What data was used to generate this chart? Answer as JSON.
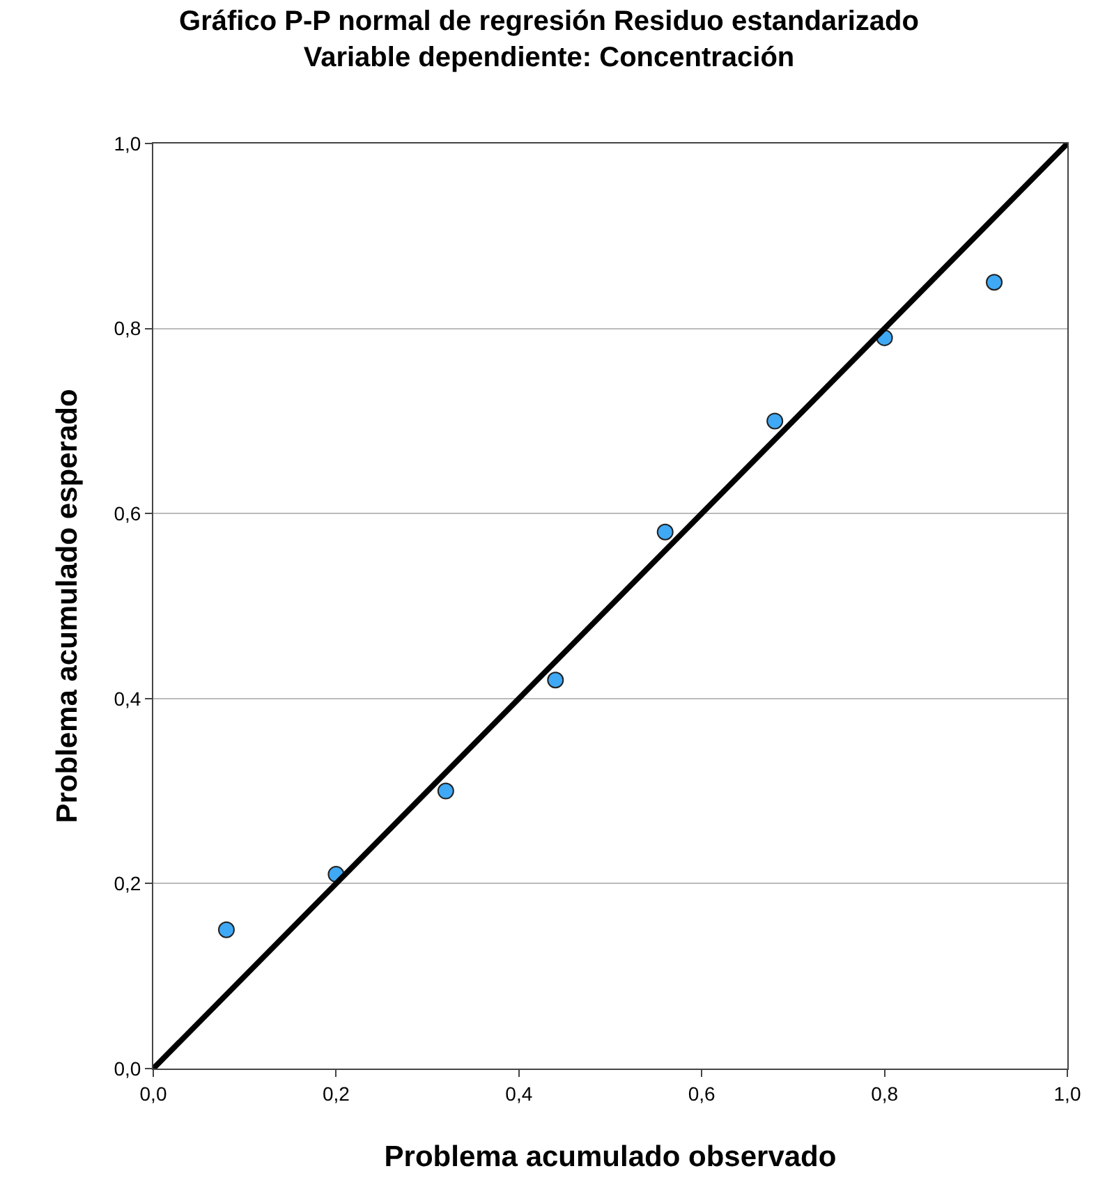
{
  "chart_data": {
    "type": "scatter",
    "title": "Gráfico P-P normal de regresión Residuo estandarizado",
    "subtitle": "Variable dependiente: Concentración",
    "xlabel": "Problema acumulado observado",
    "ylabel": "Problema acumulado esperado",
    "x": [
      0.08,
      0.2,
      0.32,
      0.44,
      0.56,
      0.68,
      0.8,
      0.92
    ],
    "series": [
      {
        "marker": "circle",
        "color": "#3fa9f5",
        "values": [
          0.15,
          0.21,
          0.3,
          0.42,
          0.58,
          0.7,
          0.79,
          0.85
        ]
      },
      {
        "type": "line",
        "marker": "none",
        "color": "#000000",
        "x": [
          0,
          1
        ],
        "values": [
          0,
          1
        ]
      }
    ],
    "grid": "y",
    "xlim": [
      0,
      1
    ],
    "ylim": [
      0,
      1
    ],
    "xticks": [
      {
        "value": 0,
        "label": "0,0"
      },
      {
        "value": 0.2,
        "label": "0,2"
      },
      {
        "value": 0.4,
        "label": "0,4"
      },
      {
        "value": 0.6,
        "label": "0,6"
      },
      {
        "value": 0.8,
        "label": "0,8"
      },
      {
        "value": 1,
        "label": "1,0"
      }
    ],
    "yticks": [
      {
        "value": 0,
        "label": "0,0"
      },
      {
        "value": 0.2,
        "label": "0,2"
      },
      {
        "value": 0.4,
        "label": "0,4"
      },
      {
        "value": 0.6,
        "label": "0,6"
      },
      {
        "value": 0.8,
        "label": "0,8"
      },
      {
        "value": 1,
        "label": "1,0"
      }
    ]
  }
}
